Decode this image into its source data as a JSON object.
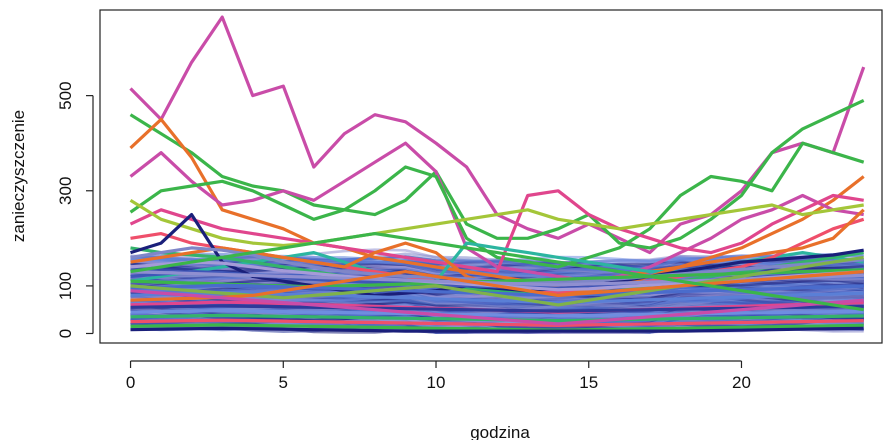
{
  "chart_data": {
    "type": "line",
    "title": "",
    "xlabel": "godzina",
    "ylabel": "zanieczyszczenie",
    "xlim": [
      -1,
      24.6
    ],
    "ylim": [
      -20,
      680
    ],
    "x_ticks": [
      0,
      5,
      10,
      15,
      20
    ],
    "y_ticks": [
      0,
      100,
      300,
      500
    ],
    "grid": false,
    "legend": "none",
    "palette": [
      "#1a1f7a",
      "#2e3a9a",
      "#3f56b8",
      "#4a6ccc",
      "#5a7fd6",
      "#6f8de0",
      "#7f86c8",
      "#8f8fd0",
      "#a59bd8",
      "#3bb54a",
      "#34b36b",
      "#2cb5a0",
      "#e8702a",
      "#ef4f6b",
      "#e0468d",
      "#c94ca8",
      "#a4c639",
      "#7fb24a"
    ],
    "x": [
      0,
      1,
      2,
      3,
      4,
      5,
      6,
      7,
      8,
      9,
      10,
      11,
      12,
      13,
      14,
      15,
      16,
      17,
      18,
      19,
      20,
      21,
      22,
      23,
      24
    ],
    "series": [
      {
        "color": "#c94ca8",
        "values": [
          515,
          450,
          570,
          665,
          500,
          520,
          350,
          420,
          460,
          445,
          400,
          350,
          250,
          220,
          200,
          230,
          200,
          170,
          230,
          250,
          300,
          380,
          400,
          380,
          560
        ]
      },
      {
        "color": "#3bb54a",
        "values": [
          460,
          420,
          380,
          330,
          310,
          300,
          270,
          260,
          250,
          280,
          340,
          230,
          200,
          200,
          220,
          250,
          190,
          180,
          200,
          240,
          290,
          380,
          430,
          460,
          490
        ]
      },
      {
        "color": "#e8702a",
        "values": [
          390,
          450,
          370,
          260,
          240,
          220,
          190,
          180,
          160,
          150,
          140,
          130,
          120,
          110,
          100,
          110,
          120,
          130,
          140,
          160,
          180,
          210,
          240,
          280,
          330
        ]
      },
      {
        "color": "#c94ca8",
        "values": [
          330,
          380,
          320,
          270,
          280,
          300,
          280,
          320,
          360,
          400,
          340,
          180,
          140,
          130,
          120,
          110,
          120,
          140,
          170,
          200,
          240,
          260,
          290,
          260,
          250
        ]
      },
      {
        "color": "#3bb54a",
        "values": [
          255,
          300,
          310,
          320,
          300,
          270,
          240,
          260,
          300,
          350,
          330,
          200,
          160,
          150,
          140,
          160,
          180,
          220,
          290,
          330,
          320,
          300,
          400,
          380,
          360
        ]
      },
      {
        "color": "#e0468d",
        "values": [
          230,
          260,
          240,
          220,
          210,
          200,
          190,
          180,
          170,
          160,
          150,
          140,
          130,
          290,
          300,
          250,
          220,
          200,
          180,
          170,
          190,
          230,
          260,
          290,
          280
        ]
      },
      {
        "color": "#a4c639",
        "values": [
          280,
          240,
          220,
          200,
          190,
          185,
          190,
          200,
          210,
          220,
          230,
          240,
          250,
          260,
          240,
          230,
          220,
          230,
          240,
          250,
          260,
          270,
          250,
          260,
          270
        ]
      },
      {
        "color": "#2cb5a0",
        "values": [
          110,
          120,
          130,
          140,
          150,
          160,
          170,
          150,
          130,
          120,
          110,
          190,
          180,
          170,
          160,
          150,
          140,
          130,
          130,
          140,
          150,
          160,
          170,
          160,
          150
        ]
      },
      {
        "color": "#ef4f6b",
        "values": [
          200,
          210,
          190,
          180,
          170,
          160,
          150,
          140,
          130,
          120,
          110,
          100,
          95,
          90,
          85,
          90,
          100,
          110,
          120,
          130,
          140,
          160,
          190,
          220,
          240
        ]
      },
      {
        "color": "#34b36b",
        "values": [
          180,
          170,
          165,
          160,
          150,
          140,
          130,
          120,
          110,
          105,
          100,
          95,
          90,
          85,
          80,
          85,
          90,
          100,
          110,
          120,
          130,
          140,
          150,
          160,
          170
        ]
      },
      {
        "color": "#e8702a",
        "values": [
          150,
          160,
          170,
          180,
          170,
          160,
          150,
          140,
          170,
          190,
          170,
          120,
          100,
          90,
          80,
          90,
          100,
          120,
          140,
          150,
          160,
          170,
          180,
          200,
          260
        ]
      },
      {
        "color": "#1a1f7a",
        "values": [
          170,
          190,
          250,
          150,
          120,
          110,
          100,
          90,
          80,
          85,
          90,
          100,
          95,
          90,
          95,
          100,
          110,
          120,
          130,
          140,
          150,
          155,
          160,
          165,
          175
        ]
      },
      {
        "color": "#7f86c8",
        "values": [
          160,
          170,
          180,
          175,
          165,
          150,
          140,
          130,
          125,
          120,
          118,
          115,
          110,
          108,
          105,
          110,
          115,
          120,
          125,
          130,
          135,
          140,
          145,
          150,
          155
        ]
      },
      {
        "color": "#3f56b8",
        "values": [
          120,
          125,
          130,
          128,
          122,
          118,
          114,
          110,
          108,
          105,
          102,
          100,
          98,
          96,
          95,
          97,
          100,
          104,
          108,
          112,
          116,
          120,
          124,
          128,
          130
        ]
      },
      {
        "color": "#3bb54a",
        "values": [
          110,
          108,
          106,
          104,
          102,
          100,
          98,
          100,
          102,
          104,
          106,
          108,
          110,
          112,
          114,
          116,
          118,
          120,
          122,
          124,
          126,
          128,
          130,
          132,
          134
        ]
      },
      {
        "color": "#4a6ccc",
        "values": [
          95,
          97,
          99,
          101,
          100,
          98,
          96,
          94,
          92,
          90,
          88,
          86,
          84,
          82,
          80,
          82,
          84,
          86,
          88,
          90,
          92,
          94,
          96,
          98,
          100
        ]
      },
      {
        "color": "#5a7fd6",
        "values": [
          80,
          82,
          84,
          86,
          85,
          83,
          81,
          79,
          77,
          75,
          73,
          71,
          69,
          67,
          65,
          67,
          69,
          71,
          73,
          75,
          77,
          79,
          81,
          83,
          85
        ]
      },
      {
        "color": "#a59bd8",
        "values": [
          140,
          145,
          150,
          148,
          140,
          132,
          126,
          120,
          116,
          112,
          108,
          104,
          100,
          96,
          92,
          94,
          98,
          102,
          106,
          110,
          114,
          118,
          122,
          126,
          130
        ]
      },
      {
        "color": "#e0468d",
        "values": [
          60,
          62,
          64,
          66,
          65,
          63,
          61,
          59,
          57,
          55,
          53,
          51,
          49,
          47,
          45,
          47,
          49,
          51,
          53,
          55,
          57,
          59,
          61,
          63,
          65
        ]
      },
      {
        "color": "#2e3a9a",
        "values": [
          55,
          56,
          57,
          58,
          57,
          56,
          55,
          54,
          53,
          52,
          51,
          50,
          49,
          48,
          47,
          48,
          49,
          50,
          51,
          52,
          53,
          54,
          55,
          56,
          57
        ]
      },
      {
        "color": "#6f8de0",
        "values": [
          45,
          46,
          47,
          48,
          47,
          46,
          45,
          44,
          43,
          42,
          41,
          40,
          39,
          38,
          37,
          38,
          39,
          40,
          41,
          42,
          43,
          44,
          45,
          46,
          47
        ]
      },
      {
        "color": "#34b36b",
        "values": [
          35,
          36,
          37,
          38,
          37,
          36,
          35,
          34,
          33,
          32,
          31,
          30,
          29,
          28,
          27,
          28,
          29,
          30,
          31,
          32,
          33,
          34,
          35,
          36,
          37
        ]
      },
      {
        "color": "#ef4f6b",
        "values": [
          25,
          26,
          27,
          28,
          27,
          26,
          25,
          24,
          23,
          22,
          21,
          20,
          19,
          18,
          17,
          18,
          19,
          20,
          21,
          22,
          23,
          24,
          25,
          26,
          27
        ]
      },
      {
        "color": "#3bb54a",
        "values": [
          15,
          16,
          17,
          18,
          17,
          16,
          15,
          14,
          13,
          12,
          11,
          10,
          9,
          8,
          7,
          8,
          9,
          10,
          11,
          12,
          13,
          14,
          15,
          16,
          17
        ]
      },
      {
        "color": "#1a1f7a",
        "values": [
          8,
          9,
          10,
          11,
          10,
          9,
          8,
          7,
          6,
          5,
          5,
          5,
          5,
          5,
          5,
          5,
          5,
          5,
          5,
          6,
          7,
          8,
          9,
          10,
          11
        ]
      },
      {
        "color": "#8f8fd0",
        "values": [
          130,
          128,
          126,
          124,
          122,
          120,
          118,
          116,
          114,
          112,
          110,
          108,
          106,
          104,
          102,
          104,
          106,
          108,
          110,
          112,
          114,
          116,
          118,
          120,
          122
        ]
      },
      {
        "color": "#7fb24a",
        "values": [
          100,
          95,
          90,
          85,
          80,
          75,
          80,
          85,
          90,
          95,
          100,
          90,
          80,
          70,
          60,
          70,
          80,
          90,
          100,
          110,
          120,
          130,
          140,
          150,
          160
        ]
      },
      {
        "color": "#e8702a",
        "values": [
          70,
          72,
          74,
          76,
          80,
          90,
          100,
          110,
          120,
          130,
          120,
          110,
          100,
          90,
          80,
          85,
          90,
          95,
          100,
          105,
          110,
          115,
          120,
          125,
          130
        ]
      },
      {
        "color": "#c94ca8",
        "values": [
          90,
          85,
          80,
          75,
          70,
          65,
          60,
          55,
          50,
          45,
          40,
          35,
          30,
          25,
          20,
          25,
          30,
          35,
          40,
          45,
          50,
          55,
          60,
          65,
          70
        ]
      },
      {
        "color": "#3bb54a",
        "values": [
          130,
          140,
          150,
          160,
          170,
          180,
          190,
          200,
          210,
          200,
          190,
          180,
          170,
          160,
          150,
          140,
          130,
          120,
          110,
          100,
          90,
          80,
          70,
          60,
          50
        ]
      }
    ]
  }
}
